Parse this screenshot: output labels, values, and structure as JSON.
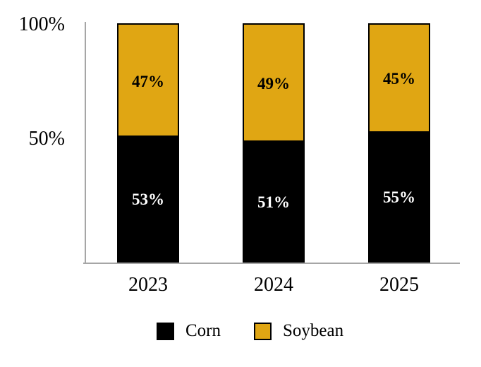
{
  "chart_data": {
    "type": "bar",
    "variant": "stacked-column-100",
    "title": "",
    "categories": [
      "2023",
      "2024",
      "2025"
    ],
    "series": [
      {
        "name": "Corn",
        "color": "#000000",
        "label_color": "#ffffff",
        "values": [
          53,
          51,
          55
        ],
        "labels": [
          "53%",
          "51%",
          "55%"
        ]
      },
      {
        "name": "Soybean",
        "color": "#e0a613",
        "label_color": "#000000",
        "values": [
          47,
          49,
          45
        ],
        "labels": [
          "47%",
          "49%",
          "45%"
        ]
      }
    ],
    "y_axis": {
      "range": [
        0,
        100
      ],
      "ticks": [
        {
          "label": "100%",
          "value": 100
        },
        {
          "label": "50%",
          "value": 50
        }
      ]
    },
    "legend": {
      "position": "bottom",
      "entries": [
        {
          "label": "Corn",
          "color": "#000000"
        },
        {
          "label": "Soybean",
          "color": "#e0a613"
        }
      ]
    },
    "axis_color": "#a6a6a6",
    "grid": false
  }
}
